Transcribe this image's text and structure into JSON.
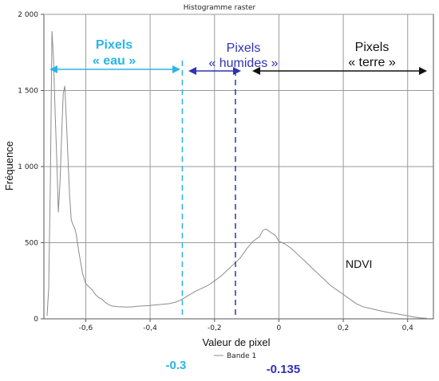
{
  "chart_data": {
    "type": "line",
    "title": "Histogramme raster",
    "xlabel": "Valeur de pixel",
    "ylabel": "Fréquence",
    "xlim": [
      -0.73,
      0.48
    ],
    "ylim": [
      0,
      2000
    ],
    "xticks": [
      -0.6,
      -0.4,
      -0.2,
      0,
      0.2,
      0.4
    ],
    "xtick_labels": [
      "-0,6",
      "-0,4",
      "-0,2",
      "0",
      "0,2",
      "0,4"
    ],
    "yticks": [
      0,
      500,
      1000,
      1500,
      2000
    ],
    "ytick_labels": [
      "0",
      "500",
      "1 000",
      "1 500",
      "2 000"
    ],
    "grid": true,
    "legend_position": "bottom-center",
    "series": [
      {
        "name": "Bande 1",
        "color": "#8c8c8c",
        "x": [
          -0.72,
          -0.715,
          -0.71,
          -0.705,
          -0.7,
          -0.695,
          -0.69,
          -0.685,
          -0.68,
          -0.675,
          -0.67,
          -0.665,
          -0.66,
          -0.655,
          -0.65,
          -0.645,
          -0.64,
          -0.635,
          -0.63,
          -0.62,
          -0.61,
          -0.6,
          -0.59,
          -0.58,
          -0.57,
          -0.56,
          -0.55,
          -0.54,
          -0.53,
          -0.52,
          -0.5,
          -0.48,
          -0.46,
          -0.44,
          -0.42,
          -0.4,
          -0.38,
          -0.36,
          -0.34,
          -0.32,
          -0.3,
          -0.28,
          -0.26,
          -0.24,
          -0.22,
          -0.2,
          -0.18,
          -0.16,
          -0.14,
          -0.12,
          -0.1,
          -0.08,
          -0.06,
          -0.05,
          -0.04,
          -0.03,
          -0.02,
          -0.01,
          0.0,
          0.02,
          0.04,
          0.06,
          0.08,
          0.1,
          0.12,
          0.14,
          0.16,
          0.18,
          0.2,
          0.22,
          0.24,
          0.26,
          0.28,
          0.3,
          0.32,
          0.34,
          0.36,
          0.38,
          0.4,
          0.42,
          0.44,
          0.46
        ],
        "values": [
          20,
          200,
          900,
          1890,
          1700,
          1350,
          1050,
          700,
          900,
          1200,
          1480,
          1530,
          1300,
          1050,
          800,
          650,
          620,
          600,
          560,
          420,
          300,
          230,
          210,
          190,
          160,
          140,
          130,
          110,
          95,
          85,
          80,
          78,
          78,
          82,
          85,
          88,
          92,
          96,
          100,
          110,
          130,
          155,
          180,
          200,
          220,
          250,
          280,
          320,
          360,
          400,
          460,
          510,
          540,
          580,
          590,
          575,
          560,
          545,
          510,
          490,
          460,
          420,
          380,
          340,
          300,
          260,
          220,
          190,
          160,
          130,
          100,
          80,
          70,
          60,
          50,
          42,
          35,
          28,
          20,
          12,
          6,
          3
        ]
      }
    ],
    "annotations": [
      {
        "id": "eau",
        "line1": "Pixels",
        "line2": "« eau »",
        "color": "#29b5e8"
      },
      {
        "id": "humides",
        "line1": "Pixels",
        "line2": "« humides »",
        "color": "#2f31b8"
      },
      {
        "id": "terre",
        "line1": "Pixels",
        "line2": "« terre »",
        "color": "#111111"
      },
      {
        "id": "ndvi",
        "text": "NDVI",
        "color": "#111111"
      },
      {
        "id": "thr1",
        "value": -0.3,
        "text": "-0.3",
        "color": "#29b5e8"
      },
      {
        "id": "thr2",
        "value": -0.135,
        "text": "-0.135",
        "color": "#2f31b8"
      }
    ]
  }
}
